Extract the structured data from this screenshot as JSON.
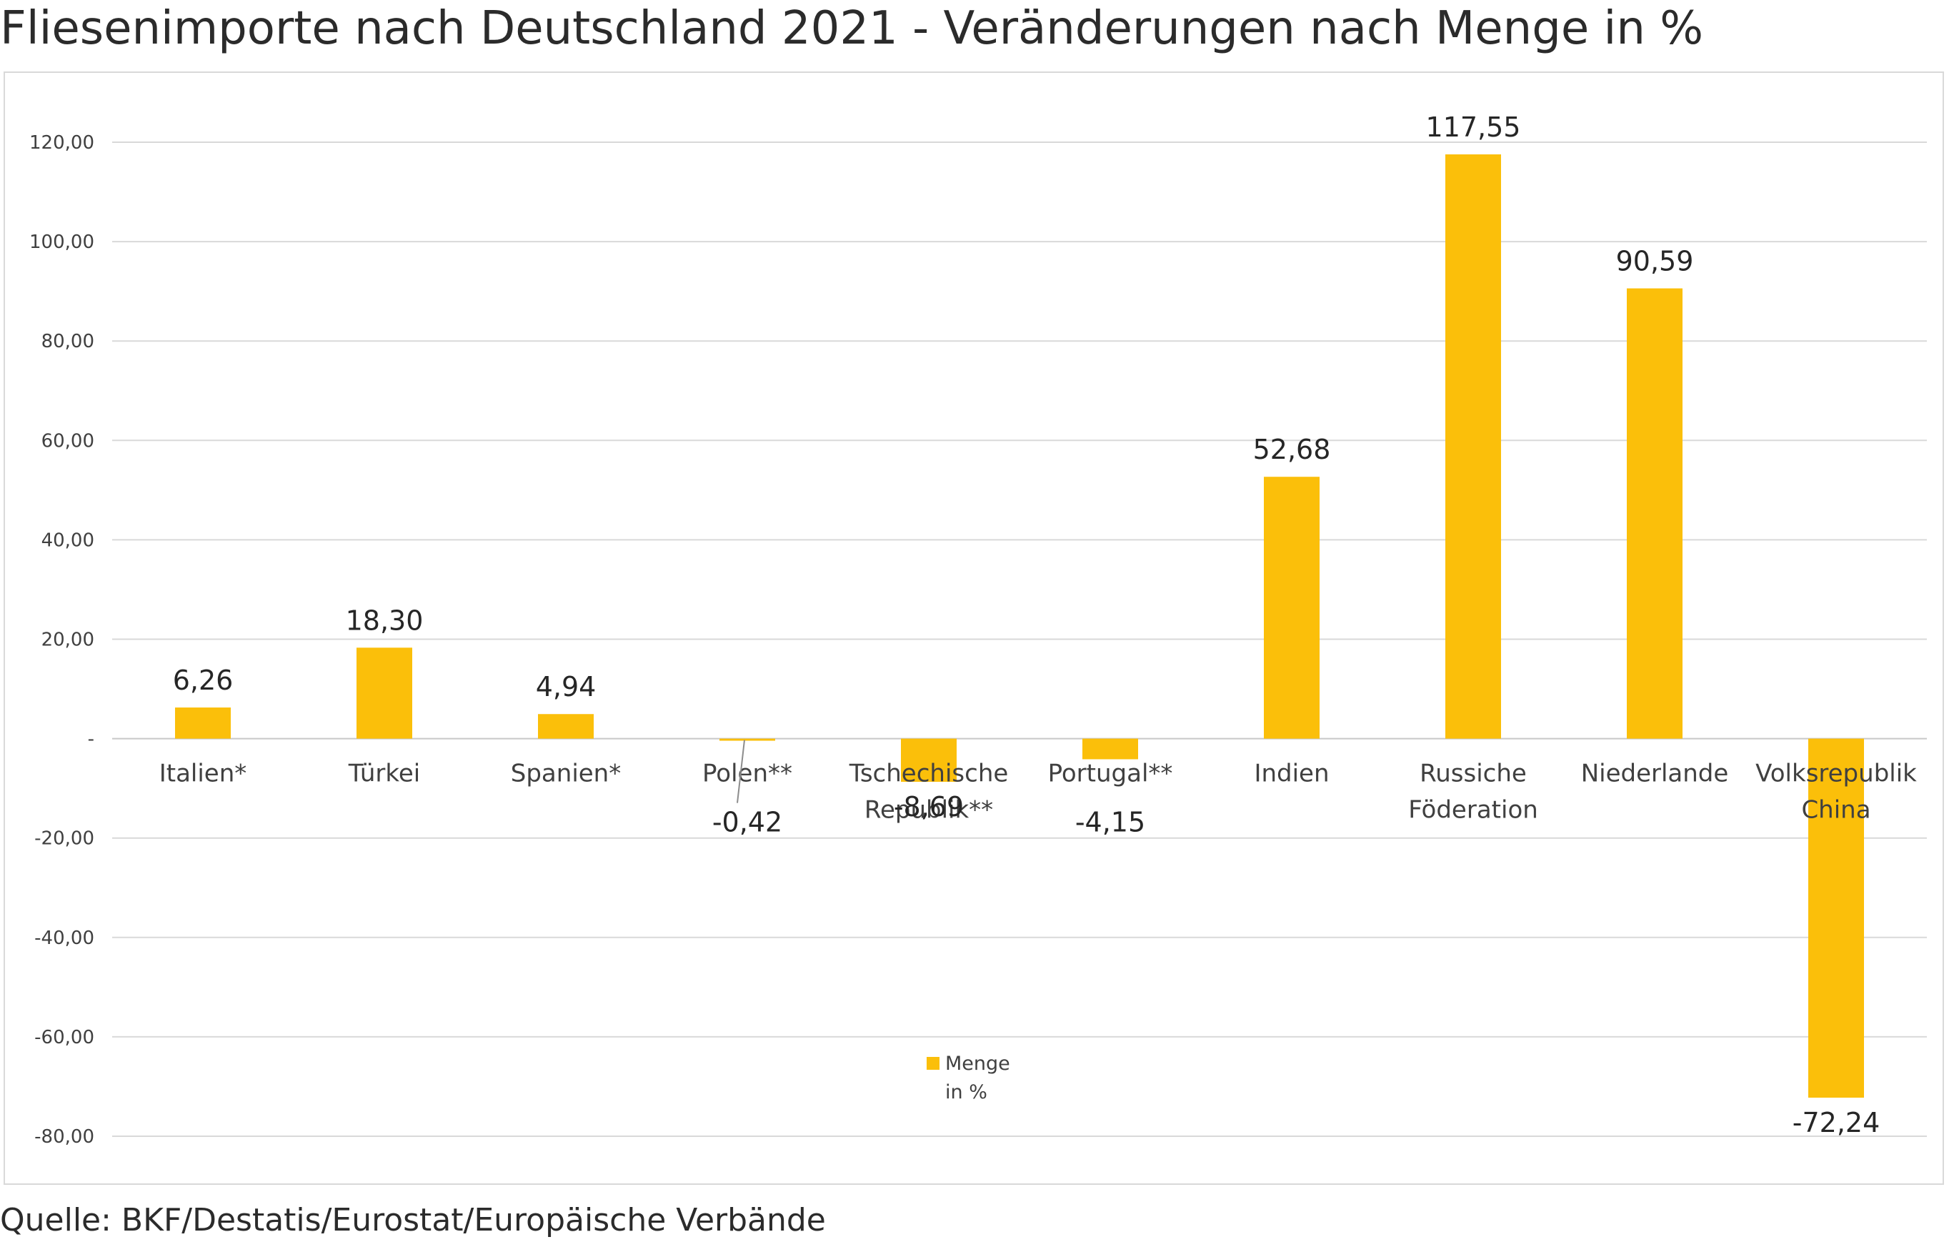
{
  "title": "Fliesenimporte nach Deutschland 2021 - Veränderungen nach Menge in %",
  "source": "Quelle: BKF/Destatis/Eurostat/Europäische Verbände",
  "colors": {
    "bar": "#FBBF0A",
    "grid": "#d9d9d9",
    "zero_line": "#c8c8c8"
  },
  "chart_data": {
    "type": "bar",
    "categories": [
      [
        "Italien*"
      ],
      [
        "Türkei"
      ],
      [
        "Spanien*"
      ],
      [
        "Polen**"
      ],
      [
        "Tschechische",
        "Republik**"
      ],
      [
        "Portugal**"
      ],
      [
        "Indien"
      ],
      [
        "Russiche",
        "Föderation"
      ],
      [
        "Niederlande"
      ],
      [
        "Volksrepublik",
        "China"
      ]
    ],
    "series": [
      {
        "name": "Menge in %",
        "values": [
          6.26,
          18.3,
          4.94,
          -0.42,
          -8.69,
          -4.15,
          52.68,
          117.55,
          90.59,
          -72.24
        ],
        "data_labels": [
          "6,26",
          "18,30",
          "4,94",
          "-0,42",
          "-8,69",
          "-4,15",
          "52,68",
          "117,55",
          "90,59",
          "-72,24"
        ]
      }
    ],
    "ylim": [
      -80,
      120
    ],
    "yticks": [
      120,
      100,
      80,
      60,
      40,
      20,
      0,
      -20,
      -40,
      -60,
      -80
    ],
    "ytick_labels": [
      "120,00",
      "100,00",
      "80,00",
      "60,00",
      "40,00",
      "20,00",
      "-",
      "-20,00",
      "-40,00",
      "-60,00",
      "-80,00"
    ],
    "grid": true,
    "legend": {
      "position": "bottom-center",
      "lines": [
        "Menge",
        "in %"
      ]
    }
  }
}
